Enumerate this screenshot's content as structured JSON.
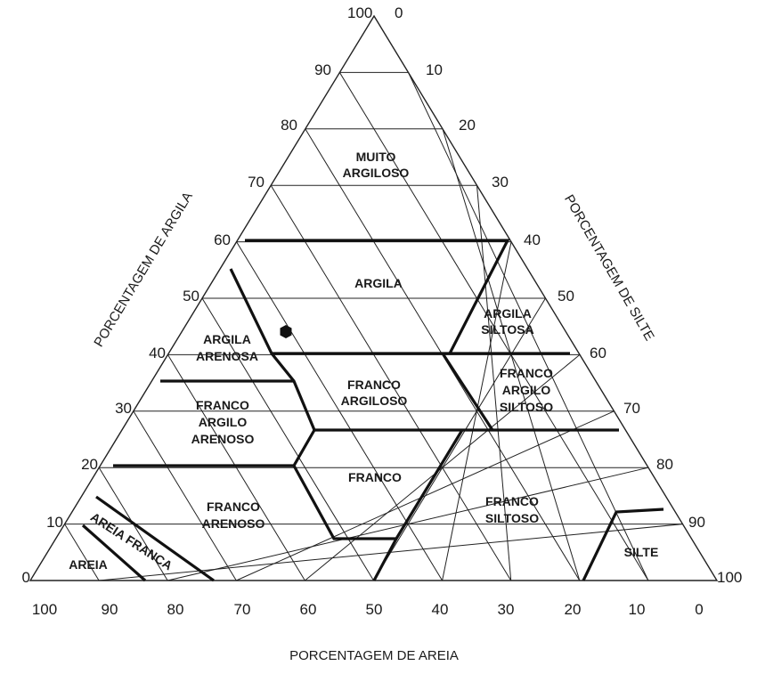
{
  "axes": {
    "clay_title": "PORCENTAGEM DE ARGILA",
    "silt_title": "PORCENTAGEM DE SILTE",
    "sand_title": "PORCENTAGEM DE AREIA",
    "top_clay_label": "100",
    "top_silt_label": "0",
    "clay_ticks": [
      "0",
      "10",
      "20",
      "30",
      "40",
      "50",
      "60",
      "70",
      "80",
      "90"
    ],
    "silt_ticks": [
      "10",
      "20",
      "30",
      "40",
      "50",
      "60",
      "70",
      "80",
      "90",
      "100"
    ],
    "sand_ticks": [
      "100",
      "90",
      "80",
      "70",
      "60",
      "50",
      "40",
      "30",
      "20",
      "10",
      "0"
    ]
  },
  "zones": {
    "muito_argiloso": [
      "MUITO",
      "ARGILOSO"
    ],
    "argila": [
      "ARGILA"
    ],
    "argila_siltosa": [
      "ARGILA",
      "SILTOSA"
    ],
    "argila_arenosa": [
      "ARGILA",
      "ARENOSA"
    ],
    "franco_argiloso": [
      "FRANCO",
      "ARGILOSO"
    ],
    "franco_argilo_siltoso": [
      "FRANCO",
      "ARGILO",
      "SILTOSO"
    ],
    "franco_argilo_arenoso": [
      "FRANCO",
      "ARGILO",
      "ARENOSO"
    ],
    "franco": [
      "FRANCO"
    ],
    "franco_arenoso": [
      "FRANCO",
      "ARENOSO"
    ],
    "franco_siltoso": [
      "FRANCO",
      "SILTOSO"
    ],
    "silte": [
      "SILTE"
    ],
    "areia_franca": [
      "AREIA FRANCA"
    ],
    "areia": [
      "AREIA"
    ]
  },
  "sample_point": {
    "marker": "hexagon-marker",
    "color": "#111111"
  },
  "colors": {
    "line": "#111111",
    "background": "#ffffff"
  }
}
